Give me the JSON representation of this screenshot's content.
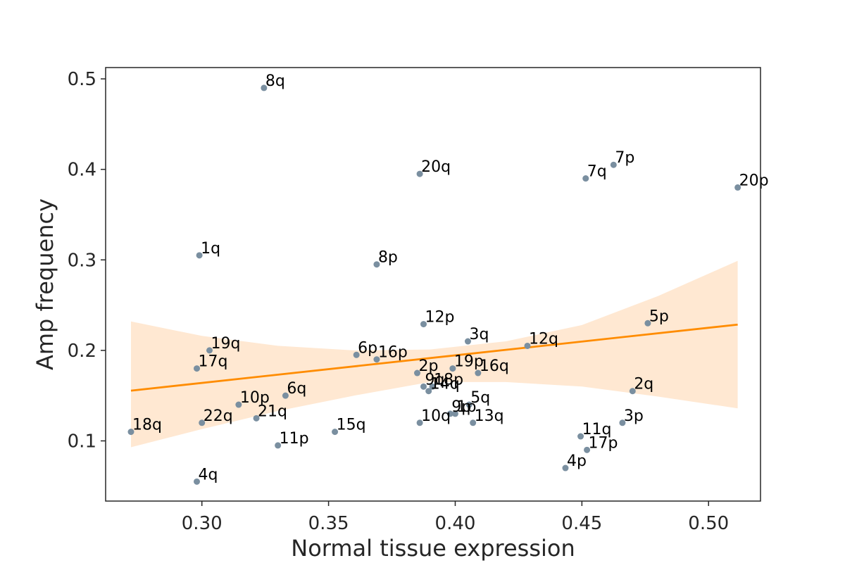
{
  "chart_data": {
    "type": "scatter",
    "title": "",
    "xlabel": "Normal tissue expression",
    "ylabel": "Amp frequency",
    "xlim": [
      0.262,
      0.5205
    ],
    "ylim": [
      0.0335,
      0.5125
    ],
    "xticks": [
      0.3,
      0.35,
      0.4,
      0.45,
      0.5
    ],
    "xtick_labels": [
      "0.30",
      "0.35",
      "0.40",
      "0.45",
      "0.50"
    ],
    "yticks": [
      0.1,
      0.2,
      0.3,
      0.4,
      0.5
    ],
    "ytick_labels": [
      "0.1",
      "0.2",
      "0.3",
      "0.4",
      "0.5"
    ],
    "grid": false,
    "point_color": "#7a8fa0",
    "line_color": "#ff8c00",
    "band_color": "#ffe8d2",
    "points": [
      {
        "label": "8q",
        "x": 0.3245,
        "y": 0.49
      },
      {
        "label": "20q",
        "x": 0.386,
        "y": 0.395
      },
      {
        "label": "7p",
        "x": 0.4625,
        "y": 0.405
      },
      {
        "label": "7q",
        "x": 0.4515,
        "y": 0.39
      },
      {
        "label": "20p",
        "x": 0.5115,
        "y": 0.38
      },
      {
        "label": "1q",
        "x": 0.299,
        "y": 0.305
      },
      {
        "label": "8p",
        "x": 0.369,
        "y": 0.295
      },
      {
        "label": "12p",
        "x": 0.3875,
        "y": 0.229
      },
      {
        "label": "5p",
        "x": 0.476,
        "y": 0.23
      },
      {
        "label": "3q",
        "x": 0.405,
        "y": 0.21
      },
      {
        "label": "12q",
        "x": 0.4285,
        "y": 0.205
      },
      {
        "label": "19q",
        "x": 0.303,
        "y": 0.2
      },
      {
        "label": "6p",
        "x": 0.361,
        "y": 0.195
      },
      {
        "label": "16p",
        "x": 0.369,
        "y": 0.19
      },
      {
        "label": "17q",
        "x": 0.298,
        "y": 0.18
      },
      {
        "label": "19p",
        "x": 0.399,
        "y": 0.18
      },
      {
        "label": "16q",
        "x": 0.409,
        "y": 0.175
      },
      {
        "label": "2p",
        "x": 0.385,
        "y": 0.175
      },
      {
        "label": "9q",
        "x": 0.3875,
        "y": 0.16
      },
      {
        "label": "18p",
        "x": 0.391,
        "y": 0.16
      },
      {
        "label": "14q",
        "x": 0.3895,
        "y": 0.155
      },
      {
        "label": "2q",
        "x": 0.47,
        "y": 0.155
      },
      {
        "label": "6q",
        "x": 0.333,
        "y": 0.15
      },
      {
        "label": "10p",
        "x": 0.3145,
        "y": 0.14
      },
      {
        "label": "5q",
        "x": 0.4055,
        "y": 0.14
      },
      {
        "label": "9p",
        "x": 0.398,
        "y": 0.13
      },
      {
        "label": "1p",
        "x": 0.4,
        "y": 0.13
      },
      {
        "label": "21q",
        "x": 0.3215,
        "y": 0.125
      },
      {
        "label": "22q",
        "x": 0.3,
        "y": 0.12
      },
      {
        "label": "10q",
        "x": 0.386,
        "y": 0.12
      },
      {
        "label": "13q",
        "x": 0.407,
        "y": 0.12
      },
      {
        "label": "3p",
        "x": 0.466,
        "y": 0.12
      },
      {
        "label": "18q",
        "x": 0.272,
        "y": 0.11
      },
      {
        "label": "15q",
        "x": 0.3525,
        "y": 0.11
      },
      {
        "label": "11q",
        "x": 0.4495,
        "y": 0.105
      },
      {
        "label": "11p",
        "x": 0.33,
        "y": 0.095
      },
      {
        "label": "17p",
        "x": 0.452,
        "y": 0.09
      },
      {
        "label": "4p",
        "x": 0.4435,
        "y": 0.07
      },
      {
        "label": "4q",
        "x": 0.298,
        "y": 0.055
      }
    ],
    "regression_line": {
      "x": [
        0.272,
        0.5115
      ],
      "y": [
        0.1555,
        0.2285
      ]
    },
    "confidence_band": {
      "x": [
        0.272,
        0.3,
        0.33,
        0.36,
        0.39,
        0.42,
        0.45,
        0.48,
        0.5115
      ],
      "upper": [
        0.232,
        0.216,
        0.205,
        0.2,
        0.201,
        0.21,
        0.228,
        0.26,
        0.299
      ],
      "lower": [
        0.093,
        0.113,
        0.133,
        0.15,
        0.165,
        0.165,
        0.16,
        0.149,
        0.136
      ]
    }
  }
}
